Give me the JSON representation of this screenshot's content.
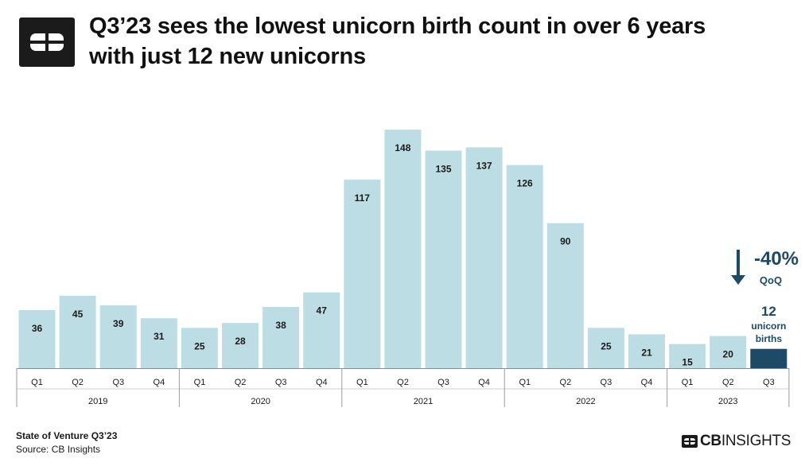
{
  "header": {
    "title_line1": "Q3’23 sees the lowest unicorn birth count in over 6 years",
    "title_line2": "with just 12 new unicorns"
  },
  "footer": {
    "subtitle": "State of Venture Q3’23",
    "source": "Source: CB Insights",
    "brand_left": "CB",
    "brand_right": "INSIGHTS"
  },
  "icons": {
    "logo": "cb-logo-icon",
    "arrow": "down-arrow-icon"
  },
  "colors": {
    "bar": "#bcdde3",
    "highlight": "#1d4a66",
    "text": "#1a1a1a"
  },
  "chart_data": {
    "type": "bar",
    "years": [
      "2019",
      "2020",
      "2021",
      "2022",
      "2023"
    ],
    "categories": [
      {
        "year": "2019",
        "quarter": "Q1"
      },
      {
        "year": "2019",
        "quarter": "Q2"
      },
      {
        "year": "2019",
        "quarter": "Q3"
      },
      {
        "year": "2019",
        "quarter": "Q4"
      },
      {
        "year": "2020",
        "quarter": "Q1"
      },
      {
        "year": "2020",
        "quarter": "Q2"
      },
      {
        "year": "2020",
        "quarter": "Q3"
      },
      {
        "year": "2020",
        "quarter": "Q4"
      },
      {
        "year": "2021",
        "quarter": "Q1"
      },
      {
        "year": "2021",
        "quarter": "Q2"
      },
      {
        "year": "2021",
        "quarter": "Q3"
      },
      {
        "year": "2021",
        "quarter": "Q4"
      },
      {
        "year": "2022",
        "quarter": "Q1"
      },
      {
        "year": "2022",
        "quarter": "Q2"
      },
      {
        "year": "2022",
        "quarter": "Q3"
      },
      {
        "year": "2022",
        "quarter": "Q4"
      },
      {
        "year": "2023",
        "quarter": "Q1"
      },
      {
        "year": "2023",
        "quarter": "Q2"
      },
      {
        "year": "2023",
        "quarter": "Q3"
      }
    ],
    "values": [
      36,
      45,
      39,
      31,
      25,
      28,
      38,
      47,
      117,
      148,
      135,
      137,
      126,
      90,
      25,
      21,
      15,
      20,
      12
    ],
    "highlight_index": 18,
    "ylim": [
      0,
      160
    ],
    "annotation": {
      "change": "-40%",
      "change_label": "QoQ",
      "value": "12",
      "label_line1": "unicorn",
      "label_line2": "births"
    }
  }
}
